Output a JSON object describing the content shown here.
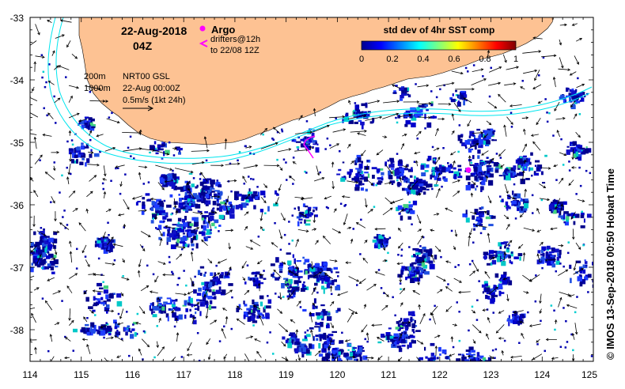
{
  "map": {
    "lon_ticks": [
      "114",
      "115",
      "116",
      "117",
      "118",
      "119",
      "120",
      "121",
      "122",
      "123",
      "124",
      "125"
    ],
    "lat_ticks": [
      "-33",
      "-34",
      "-35",
      "-36",
      "-37",
      "-38"
    ],
    "land_color": "#FDC293",
    "isobath_color": "#00E5EE"
  },
  "header": {
    "date": "22-Aug-2018",
    "hour": "04Z"
  },
  "legend": {
    "argo_label": "Argo",
    "drifters_line1": "drifters@12h",
    "drifters_line2": "to 22/08 12Z",
    "argo_color": "#FF00FF"
  },
  "info": {
    "isobath1": "200m",
    "isobath2": "1000m",
    "product": "NRT00 GSL",
    "datetime": "22-Aug 00:00Z",
    "scale": "0.5m/s (1kt 24h)"
  },
  "colorbar": {
    "title": "std dev of 4hr SST comp",
    "ticks": [
      "0",
      "0.2",
      "0.4",
      "0.6",
      "0.8",
      "1"
    ]
  },
  "credit": "© IMOS 13-Sep-2018 00:50 Hobart Time"
}
